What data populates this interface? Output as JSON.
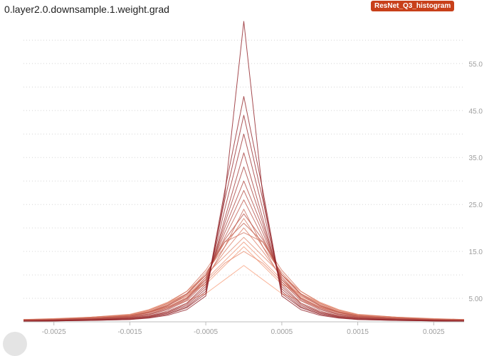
{
  "card": {
    "title": "0.layer2.0.downsample.1.weight.grad",
    "run_badge": "ResNet_Q3_histogram"
  },
  "colors": {
    "badge": "#c8401a",
    "oldest_series": "#f9a482",
    "newest_series": "#8e1e24",
    "grid": "#d6d6d6",
    "tick_text": "#9e9e9e"
  },
  "chart_data": {
    "type": "line",
    "title": "0.layer2.0.downsample.1.weight.grad",
    "xlim": [
      -0.0029,
      0.0029
    ],
    "ylim": [
      0,
      64
    ],
    "x_ticks": [
      -0.0025,
      -0.0015,
      -0.0005,
      0.0005,
      0.0015,
      0.0025
    ],
    "x_tick_labels": [
      "-0.0025",
      "-0.0015",
      "-0.0005",
      "0.0005",
      "0.0015",
      "0.0025"
    ],
    "y_ticks": [
      5,
      15,
      25,
      35,
      45,
      55
    ],
    "y_tick_labels": [
      "5.00",
      "15.0",
      "25.0",
      "35.0",
      "45.0",
      "55.0"
    ],
    "grid": "horizontal dotted",
    "legend": "none",
    "x": [
      -0.0029,
      -0.0025,
      -0.002,
      -0.0015,
      -0.00125,
      -0.001,
      -0.00075,
      -0.0005,
      -0.00025,
      0,
      0.00025,
      0.0005,
      0.00075,
      0.001,
      0.00125,
      0.0015,
      0.002,
      0.0025,
      0.0029
    ],
    "series": [
      {
        "values": [
          0.4,
          0.5,
          0.8,
          1.2,
          2,
          3,
          4.5,
          6,
          9,
          12,
          9,
          6,
          4.5,
          3,
          2,
          1.2,
          0.8,
          0.5,
          0.4
        ]
      },
      {
        "values": [
          0.5,
          0.6,
          1,
          1.5,
          2.5,
          4,
          6,
          8,
          12,
          16,
          12,
          8,
          6,
          4,
          2.5,
          1.5,
          1,
          0.6,
          0.5
        ]
      },
      {
        "values": [
          0.4,
          0.5,
          0.9,
          1.4,
          2.2,
          3.5,
          5.5,
          9,
          13,
          17,
          13,
          9,
          5.5,
          3.5,
          2.2,
          1.4,
          0.9,
          0.5,
          0.4
        ]
      },
      {
        "values": [
          0.3,
          0.5,
          0.8,
          1.3,
          2,
          3.2,
          5,
          8.5,
          12.5,
          15,
          12.5,
          8.5,
          5,
          3.2,
          2,
          1.3,
          0.8,
          0.5,
          0.3
        ]
      },
      {
        "values": [
          0.5,
          0.7,
          1,
          1.6,
          2.6,
          4.2,
          6.5,
          10,
          14,
          18,
          14,
          10,
          6.5,
          4.2,
          2.6,
          1.6,
          1,
          0.7,
          0.5
        ]
      },
      {
        "values": [
          0.3,
          0.4,
          0.7,
          1.2,
          2,
          3.5,
          5.5,
          9.5,
          15,
          20,
          15,
          9.5,
          5.5,
          3.5,
          2,
          1.2,
          0.7,
          0.4,
          0.3
        ]
      },
      {
        "values": [
          0.4,
          0.5,
          0.8,
          1.3,
          2.2,
          3.8,
          6,
          10.5,
          16,
          22,
          16,
          10.5,
          6,
          3.8,
          2.2,
          1.3,
          0.8,
          0.5,
          0.4
        ]
      },
      {
        "values": [
          0.5,
          0.6,
          1,
          1.5,
          2.4,
          4,
          6.5,
          11,
          17,
          19,
          17,
          11,
          6.5,
          4,
          2.4,
          1.5,
          1,
          0.6,
          0.5
        ]
      },
      {
        "values": [
          0.3,
          0.4,
          0.7,
          1.1,
          1.9,
          3.2,
          5.2,
          9,
          16,
          24,
          16,
          9,
          5.2,
          3.2,
          1.9,
          1.1,
          0.7,
          0.4,
          0.3
        ]
      },
      {
        "values": [
          0.4,
          0.5,
          0.8,
          1.3,
          2.1,
          3.6,
          6,
          10,
          17,
          21,
          17,
          10,
          6,
          3.6,
          2.1,
          1.3,
          0.8,
          0.5,
          0.4
        ]
      },
      {
        "values": [
          0.3,
          0.4,
          0.6,
          1,
          1.7,
          3,
          5,
          9.5,
          18,
          26,
          18,
          9.5,
          5,
          3,
          1.7,
          1,
          0.6,
          0.4,
          0.3
        ]
      },
      {
        "values": [
          0.4,
          0.5,
          0.8,
          1.2,
          2,
          3.4,
          5.8,
          10,
          17.5,
          23,
          17.5,
          10,
          5.8,
          3.4,
          2,
          1.2,
          0.8,
          0.5,
          0.4
        ]
      },
      {
        "values": [
          0.3,
          0.4,
          0.6,
          1,
          1.6,
          2.8,
          4.8,
          9,
          19,
          28,
          19,
          9,
          4.8,
          2.8,
          1.6,
          1,
          0.6,
          0.4,
          0.3
        ]
      },
      {
        "values": [
          0.3,
          0.4,
          0.6,
          0.9,
          1.5,
          2.6,
          4.5,
          8.5,
          20,
          30,
          20,
          8.5,
          4.5,
          2.6,
          1.5,
          0.9,
          0.6,
          0.4,
          0.3
        ]
      },
      {
        "values": [
          0.2,
          0.3,
          0.5,
          0.8,
          1.3,
          2.3,
          4,
          8,
          21,
          33,
          21,
          8,
          4,
          2.3,
          1.3,
          0.8,
          0.5,
          0.3,
          0.2
        ]
      },
      {
        "values": [
          0.2,
          0.3,
          0.5,
          0.8,
          1.2,
          2.1,
          3.8,
          7.5,
          22,
          36,
          22,
          7.5,
          3.8,
          2.1,
          1.2,
          0.8,
          0.5,
          0.3,
          0.2
        ]
      },
      {
        "values": [
          0.2,
          0.3,
          0.4,
          0.7,
          1.1,
          2,
          3.5,
          7,
          24,
          40,
          24,
          7,
          3.5,
          2,
          1.1,
          0.7,
          0.4,
          0.3,
          0.2
        ]
      },
      {
        "values": [
          0.2,
          0.2,
          0.4,
          0.6,
          1,
          1.8,
          3.2,
          6.5,
          26,
          44,
          26,
          6.5,
          3.2,
          1.8,
          1,
          0.6,
          0.4,
          0.2,
          0.2
        ]
      },
      {
        "values": [
          0.1,
          0.2,
          0.3,
          0.5,
          0.9,
          1.6,
          3,
          6,
          28,
          48,
          28,
          6,
          3,
          1.6,
          0.9,
          0.5,
          0.3,
          0.2,
          0.1
        ]
      },
      {
        "values": [
          0.1,
          0.2,
          0.3,
          0.5,
          0.8,
          1.4,
          2.6,
          5.5,
          27,
          64,
          27,
          5.5,
          2.6,
          1.4,
          0.8,
          0.5,
          0.3,
          0.2,
          0.1
        ]
      }
    ]
  }
}
